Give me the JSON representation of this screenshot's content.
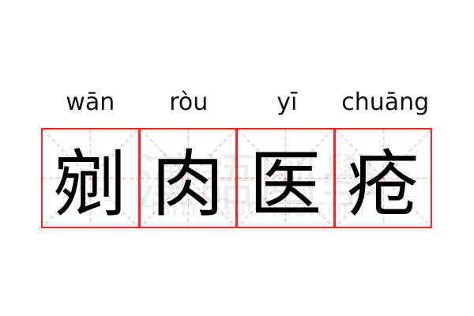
{
  "word": [
    {
      "pinyin": "wān",
      "hanzi": "剜"
    },
    {
      "pinyin": "ròu",
      "hanzi": "肉"
    },
    {
      "pinyin": "yī",
      "hanzi": "医"
    },
    {
      "pinyin": "chuāng",
      "hanzi": "疮"
    }
  ],
  "watermark": {
    "cn": "漢語國學",
    "en": "HanYuGuoXue.com"
  },
  "colors": {
    "grid_border": "#ff2222",
    "guide_lines": "#f8a0a0",
    "text": "#000000"
  }
}
